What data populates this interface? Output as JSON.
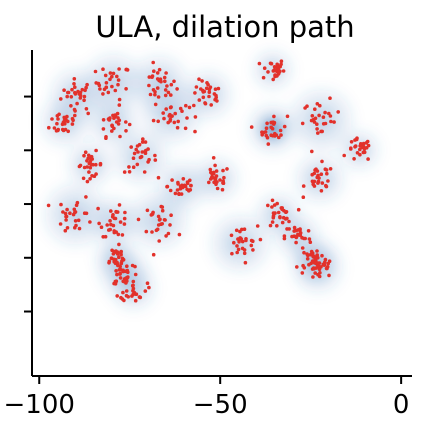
{
  "chart_data": {
    "type": "scatter",
    "title": "ULA, dilation path",
    "xlabel": "",
    "ylabel": "",
    "xlim": [
      -102,
      3
    ],
    "ylim": [
      -48,
      43
    ],
    "x_ticks": [
      -100,
      -50,
      0
    ],
    "x_tick_labels": [
      "−100",
      "−50",
      "0"
    ],
    "y_ticks": [
      -30,
      -15,
      0,
      15,
      30
    ],
    "grid": false,
    "legend": "none",
    "series": [
      {
        "style": "density",
        "color": "#2b6cb0",
        "points_per_cluster": 28,
        "total_points": 756
      },
      {
        "style": "points",
        "color": "#e2312b",
        "points_per_cluster": 28,
        "total_points": 756
      }
    ],
    "clusters": [
      {
        "x": -89.5,
        "y": 30.5,
        "spread": 2.2
      },
      {
        "x": -79.5,
        "y": 34.0,
        "spread": 2.4
      },
      {
        "x": -67.0,
        "y": 33.5,
        "spread": 2.4
      },
      {
        "x": -53.5,
        "y": 30.5,
        "spread": 2.0
      },
      {
        "x": -35.5,
        "y": 37.5,
        "spread": 1.6
      },
      {
        "x": -93.0,
        "y": 23.0,
        "spread": 2.0
      },
      {
        "x": -79.5,
        "y": 23.0,
        "spread": 2.0
      },
      {
        "x": -63.5,
        "y": 25.0,
        "spread": 2.4
      },
      {
        "x": -35.5,
        "y": 21.0,
        "spread": 2.0
      },
      {
        "x": -22.0,
        "y": 23.5,
        "spread": 2.6
      },
      {
        "x": -86.0,
        "y": 11.0,
        "spread": 1.8
      },
      {
        "x": -72.0,
        "y": 13.0,
        "spread": 2.2
      },
      {
        "x": -60.5,
        "y": 5.0,
        "spread": 2.0
      },
      {
        "x": -51.0,
        "y": 7.0,
        "spread": 1.8
      },
      {
        "x": -11.5,
        "y": 15.0,
        "spread": 1.6
      },
      {
        "x": -22.5,
        "y": 7.0,
        "spread": 2.0
      },
      {
        "x": -90.0,
        "y": -3.0,
        "spread": 2.6
      },
      {
        "x": -79.0,
        "y": -5.0,
        "spread": 2.0
      },
      {
        "x": -67.0,
        "y": -4.5,
        "spread": 2.4
      },
      {
        "x": -34.0,
        "y": -3.0,
        "spread": 1.8
      },
      {
        "x": -44.5,
        "y": -11.0,
        "spread": 2.4
      },
      {
        "x": -28.5,
        "y": -9.0,
        "spread": 1.8
      },
      {
        "x": -24.0,
        "y": -15.5,
        "spread": 1.8
      },
      {
        "x": -76.5,
        "y": -19.0,
        "spread": 2.0
      },
      {
        "x": -23.0,
        "y": -18.0,
        "spread": 2.0
      },
      {
        "x": -74.0,
        "y": -23.5,
        "spread": 1.8
      },
      {
        "x": -79.0,
        "y": -15.0,
        "spread": 1.6
      }
    ]
  }
}
